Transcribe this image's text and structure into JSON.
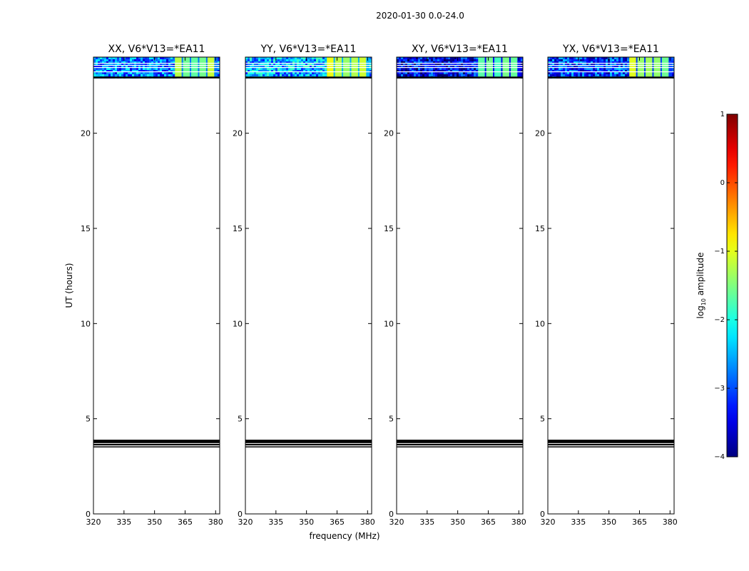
{
  "figure": {
    "suptitle": "2020-01-30 0.0-24.0",
    "colorbar_label": "log10 amplitude",
    "colorbar_label_base": "log",
    "colorbar_label_sub": "10",
    "colorbar_label_rest": " amplitude"
  },
  "chart_data": {
    "type": "heatmap",
    "xlabel": "frequency (MHz)",
    "ylabel": "UT (hours)",
    "xlim": [
      320,
      382
    ],
    "ylim": [
      0,
      24
    ],
    "xticks": [
      320,
      335,
      350,
      365,
      380
    ],
    "xtick_labels": [
      "320",
      "335",
      "350",
      "365",
      "380"
    ],
    "yticks": [
      0,
      5,
      10,
      15,
      20
    ],
    "ytick_labels": [
      "0",
      "5",
      "10",
      "15",
      "20"
    ],
    "colormap": "jet",
    "color_range": [
      -4,
      1
    ],
    "colorbar_ticks": [
      1,
      0,
      -1,
      -2,
      -3,
      -4
    ],
    "colorbar_tick_labels": [
      "1",
      "0",
      "−1",
      "−2",
      "−3",
      "−4"
    ],
    "data_time_range_hours": [
      22.9,
      24.0
    ],
    "flagged_time_bands_hours": [
      [
        3.5,
        3.55
      ],
      [
        3.6,
        3.68
      ],
      [
        3.72,
        3.9
      ]
    ],
    "band_background_value": -3.2,
    "band_hot_frequency_range_mhz": [
      360,
      380
    ],
    "band_hot_value_range": [
      -1.8,
      -1.0
    ],
    "panels": [
      {
        "title": "XX, V6*V13=*EA11",
        "background_value": -2.8,
        "hot_value": -1.4
      },
      {
        "title": "YY, V6*V13=*EA11",
        "background_value": -2.5,
        "hot_value": -1.2
      },
      {
        "title": "XY, V6*V13=*EA11",
        "background_value": -3.4,
        "hot_value": -1.7
      },
      {
        "title": "YX, V6*V13=*EA11",
        "background_value": -3.1,
        "hot_value": -1.3
      }
    ]
  }
}
